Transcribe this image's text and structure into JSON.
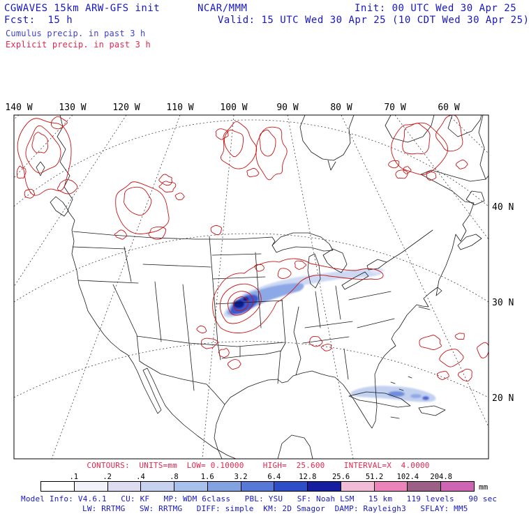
{
  "header": {
    "title": "CGWAVES 15km ARW-GFS init",
    "fcst": "Fcst:  15 h",
    "legend_cumulus": "Cumulus precip. in past 3 h",
    "legend_explicit": "Explicit precip. in past 3 h",
    "center": "NCAR/MMM",
    "init": "Init: 00 UTC Wed 30 Apr 25",
    "valid": "Valid: 15 UTC Wed 30 Apr 25 (10 CDT Wed 30 Apr 25)"
  },
  "map": {
    "lon_labels": [
      "140 W",
      "130 W",
      "120 W",
      "110 W",
      "100 W",
      "90 W",
      "80 W",
      "70 W",
      "60 W"
    ],
    "lat_labels": [
      "40 N",
      "30 N",
      "20 N"
    ]
  },
  "contours_info": "CONTOURS:  UNITS=mm  LOW= 0.10000    HIGH=  25.600    INTERVAL=X  4.0000",
  "colorbar": {
    "tick_labels": [
      ".1",
      ".2",
      ".4",
      ".8",
      "1.6",
      "3.2",
      "6.4",
      "12.8",
      "25.6",
      "51.2",
      "102.4",
      "204.8"
    ],
    "unit": "mm",
    "colors": [
      "#ffffff",
      "#f2f2fa",
      "#dddcf0",
      "#c6d2f0",
      "#a8c0ec",
      "#82a2e2",
      "#5678d6",
      "#2e4ec8",
      "#141e9e",
      "#f2bcd8",
      "#ec84ba",
      "#9c5f86",
      "#cf63b4"
    ]
  },
  "model_info": {
    "line1": "Model Info: V4.6.1   CU: KF   MP: WDM 6class   PBL: YSU   SF: Noah LSM   15 km   119 levels   90 sec",
    "line2": "LW: RRTMG   SW: RRTMG   DIFF: simple  KM: 2D Smagor  DAMP: Rayleigh3   SFLAY: MM5"
  },
  "colors": {
    "text_blue": "#1616c8",
    "text_red": "#e8244e",
    "contour_red": "#c81414",
    "precip_fill_light": "#cdd9f3",
    "precip_fill_dark": "#111d92"
  }
}
